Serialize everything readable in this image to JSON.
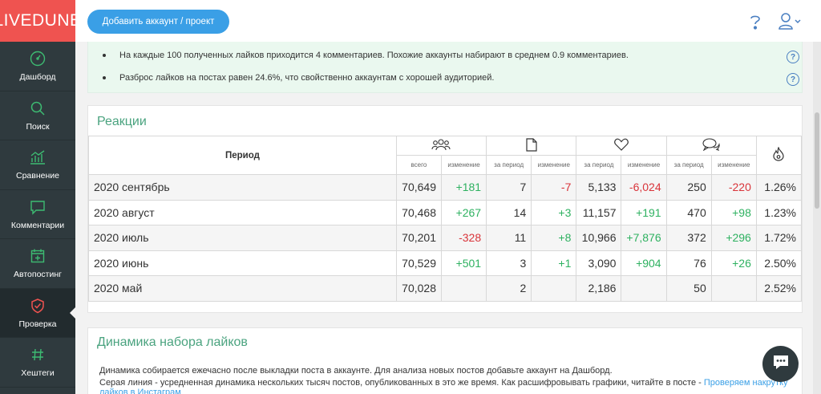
{
  "app": {
    "logo": "LIVEDUNE"
  },
  "sidebar": {
    "items": [
      {
        "label": "Дашборд",
        "icon": "gauge-icon"
      },
      {
        "label": "Поиск",
        "icon": "search-icon"
      },
      {
        "label": "Сравнение",
        "icon": "chart-icon"
      },
      {
        "label": "Комментарии",
        "icon": "comment-icon"
      },
      {
        "label": "Автопостинг",
        "icon": "calendar-plus-icon"
      },
      {
        "label": "Проверка",
        "icon": "shield-check-icon",
        "active": true
      },
      {
        "label": "Хештеги",
        "icon": "hash-icon"
      }
    ]
  },
  "header": {
    "add_button": "Добавить аккаунт / проект"
  },
  "info": {
    "line1": "На каждые 100 полученных лайков приходится 4 комментариев. Похожие аккаунты набирают в среднем 0.9 комментариев.",
    "line2": "Разброс лайков на постах равен 24.6%, что свойственно аккаунтам с хорошей аудиторией."
  },
  "reactions": {
    "title": "Реакции",
    "period_header": "Период",
    "sub_headers": {
      "total": "всего",
      "change": "изменение",
      "per_period": "за период"
    },
    "rows": [
      {
        "period": "2020 сентябрь",
        "followers": "70,649",
        "followers_change": "+181",
        "posts": "7",
        "posts_change": "-7",
        "likes": "5,133",
        "likes_change": "-6,024",
        "comments": "250",
        "comments_change": "-220",
        "er": "1.26%"
      },
      {
        "period": "2020 август",
        "followers": "70,468",
        "followers_change": "+267",
        "posts": "14",
        "posts_change": "+3",
        "likes": "11,157",
        "likes_change": "+191",
        "comments": "470",
        "comments_change": "+98",
        "er": "1.23%"
      },
      {
        "period": "2020 июль",
        "followers": "70,201",
        "followers_change": "-328",
        "posts": "11",
        "posts_change": "+8",
        "likes": "10,966",
        "likes_change": "+7,876",
        "comments": "372",
        "comments_change": "+296",
        "er": "1.72%"
      },
      {
        "period": "2020 июнь",
        "followers": "70,529",
        "followers_change": "+501",
        "posts": "3",
        "posts_change": "+1",
        "likes": "3,090",
        "likes_change": "+904",
        "comments": "76",
        "comments_change": "+26",
        "er": "2.50%"
      },
      {
        "period": "2020 май",
        "followers": "70,028",
        "followers_change": "",
        "posts": "2",
        "posts_change": "",
        "likes": "2,186",
        "likes_change": "",
        "comments": "50",
        "comments_change": "",
        "er": "2.52%"
      }
    ]
  },
  "likes_dynamics": {
    "title": "Динамика набора лайков",
    "desc1": "Динамика собирается ежечасно после выкладки поста в аккаунте. Для анализа новых постов добавьте аккаунт на Дашборд.",
    "desc2": "Серая линия - усредненная динамика нескольких тысяч постов, опубликованных в это же время. Как расшифровывать графики, читайте в посте - ",
    "link": "Проверяем накрутку лайков в Инстаграм"
  },
  "colors": {
    "accent": "#3a9fe6",
    "brand": "#ef5350",
    "positive": "#2eb160",
    "negative": "#d9343a",
    "title_green": "#4aa37f"
  }
}
